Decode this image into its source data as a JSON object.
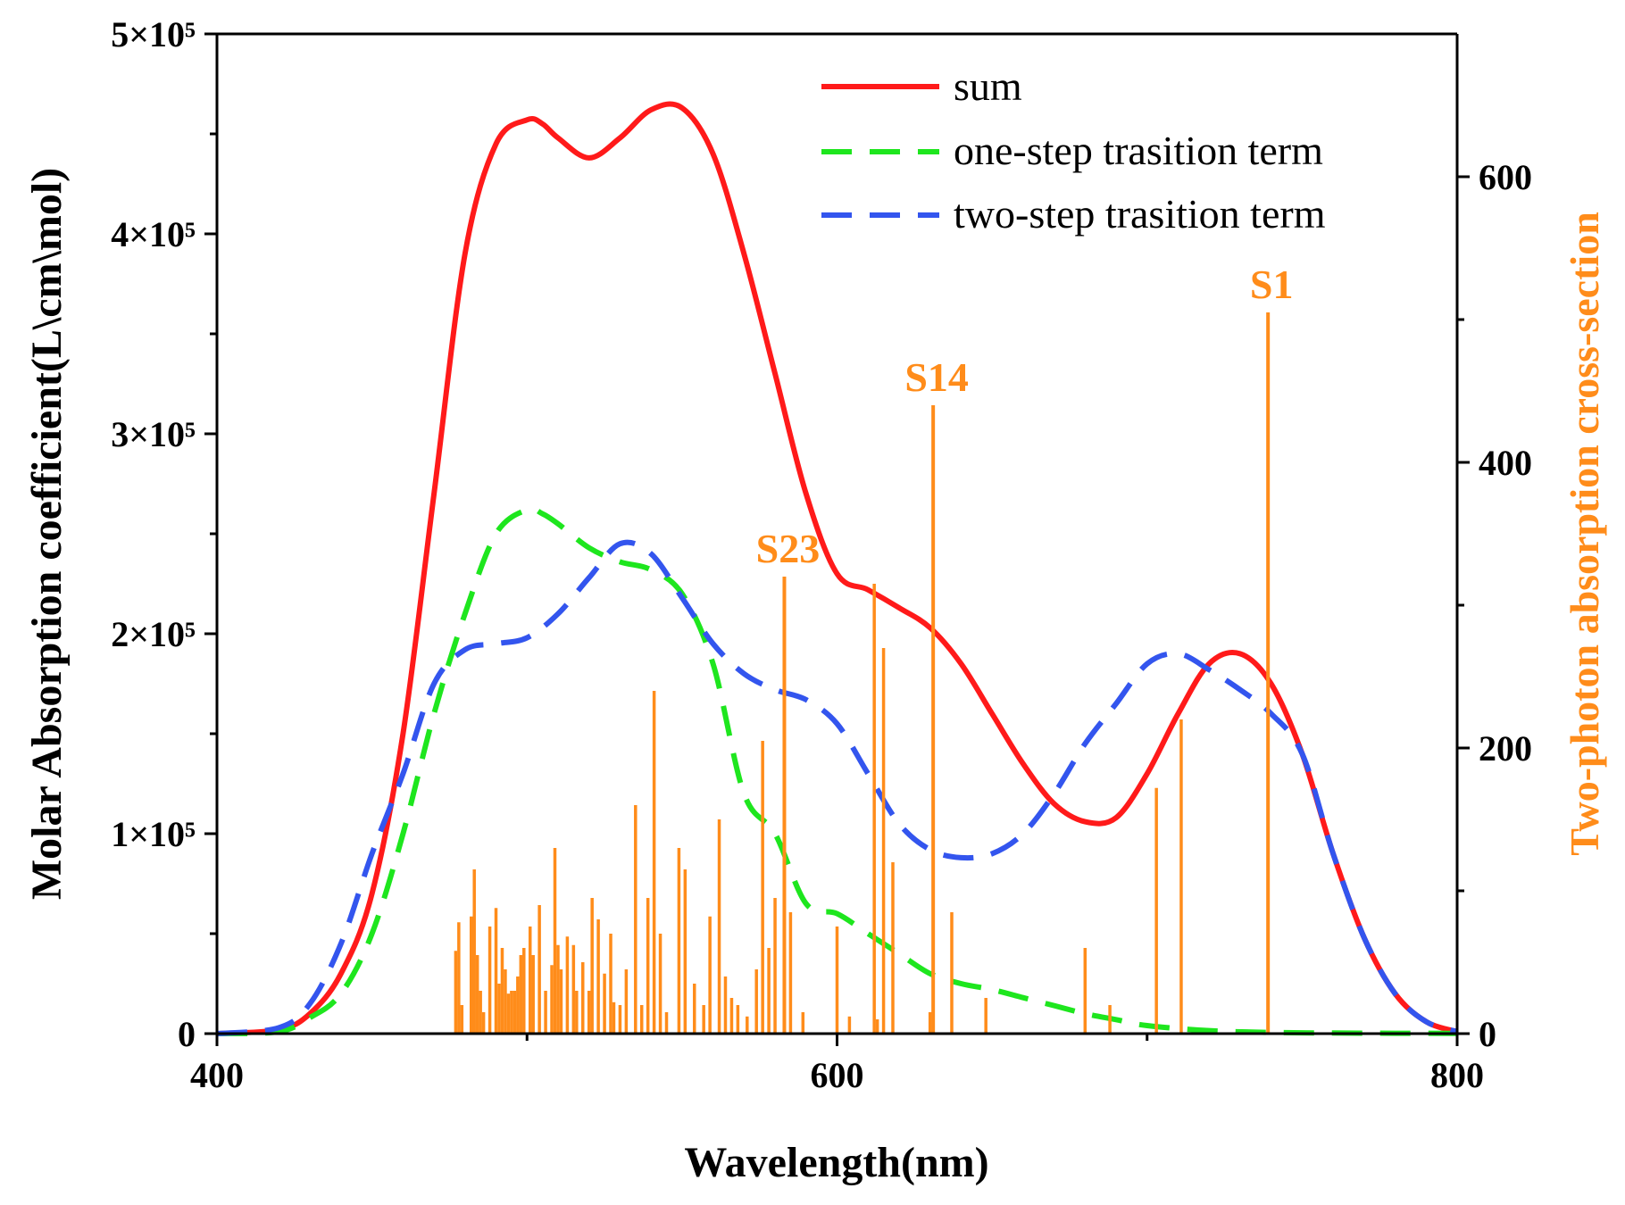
{
  "chart_data": {
    "type": "line",
    "xlabel": "Wavelength(nm)",
    "ylabel": "Molar Absorption coefficient(L\\cm\\mol)",
    "y2label": "Two-photon absorption cross-section",
    "xlim": [
      400,
      800
    ],
    "ylim": [
      0,
      500000
    ],
    "y2lim": [
      0,
      700
    ],
    "x_ticks": [
      "400",
      "600",
      "800"
    ],
    "y_ticks": [
      {
        "value": 0,
        "label": "0"
      },
      {
        "value": 100000,
        "label": "1×10⁵"
      },
      {
        "value": 200000,
        "label": "2×10⁵"
      },
      {
        "value": 300000,
        "label": "3×10⁵"
      },
      {
        "value": 400000,
        "label": "4×10⁵"
      },
      {
        "value": 500000,
        "label": "5×10⁵"
      }
    ],
    "y2_ticks": [
      "0",
      "200",
      "400",
      "600"
    ],
    "colors": {
      "sum": "#ff1a1a",
      "one_step": "#1ee61e",
      "two_step": "#3355ee",
      "sticks": "#ff8c1a"
    },
    "series": [
      {
        "name": "sum",
        "style": "solid",
        "x": [
          400,
          420,
          430,
          440,
          450,
          460,
          470,
          480,
          490,
          500,
          505,
          510,
          520,
          530,
          540,
          550,
          560,
          570,
          580,
          590,
          600,
          610,
          620,
          630,
          640,
          650,
          660,
          670,
          680,
          690,
          700,
          710,
          720,
          730,
          740,
          750,
          760,
          770,
          780,
          790,
          800
        ],
        "y": [
          0,
          2000,
          10000,
          30000,
          70000,
          150000,
          270000,
          390000,
          445000,
          457000,
          455000,
          448000,
          438000,
          448000,
          462000,
          463000,
          440000,
          390000,
          330000,
          270000,
          230000,
          222000,
          213000,
          203000,
          185000,
          160000,
          135000,
          115000,
          106000,
          108000,
          130000,
          160000,
          185000,
          190000,
          175000,
          140000,
          90000,
          48000,
          20000,
          6000,
          1000
        ]
      },
      {
        "name": "one-step trasition term",
        "style": "dashed",
        "x": [
          400,
          420,
          430,
          440,
          450,
          460,
          470,
          480,
          490,
          500,
          505,
          510,
          520,
          530,
          540,
          550,
          560,
          570,
          580,
          590,
          600,
          610,
          620,
          630,
          640,
          650,
          660,
          670,
          680,
          690,
          700,
          720,
          740,
          760,
          780,
          800
        ],
        "y": [
          0,
          1000,
          8000,
          20000,
          50000,
          100000,
          160000,
          210000,
          250000,
          262000,
          260000,
          255000,
          243000,
          236000,
          232000,
          220000,
          185000,
          120000,
          100000,
          65000,
          60000,
          50000,
          40000,
          30000,
          25000,
          22000,
          18000,
          14000,
          10000,
          7000,
          4000,
          1500,
          600,
          300,
          200,
          100
        ]
      },
      {
        "name": "two-step trasition term",
        "style": "dashed",
        "x": [
          400,
          420,
          430,
          440,
          450,
          460,
          470,
          480,
          490,
          500,
          510,
          520,
          530,
          540,
          550,
          560,
          570,
          580,
          590,
          600,
          610,
          620,
          630,
          640,
          650,
          660,
          670,
          680,
          690,
          700,
          710,
          720,
          730,
          740,
          750,
          760,
          770,
          780,
          790,
          800
        ],
        "y": [
          0,
          3000,
          15000,
          45000,
          90000,
          130000,
          175000,
          192000,
          195000,
          198000,
          210000,
          228000,
          245000,
          240000,
          218000,
          195000,
          180000,
          172000,
          167000,
          155000,
          130000,
          105000,
          92000,
          88000,
          90000,
          100000,
          120000,
          145000,
          165000,
          185000,
          190000,
          182000,
          172000,
          160000,
          140000,
          90000,
          48000,
          20000,
          6000,
          1000
        ]
      }
    ],
    "sticks": {
      "name": "Two-photon absorption cross-section",
      "axis": "right",
      "x": [
        477,
        478,
        479,
        482,
        483,
        484,
        485,
        486,
        488,
        490,
        491,
        492,
        493,
        494,
        495,
        496,
        497,
        498,
        499,
        501,
        502,
        504,
        506,
        508,
        509,
        510,
        511,
        513,
        515,
        516,
        518,
        520,
        521,
        523,
        525,
        527,
        528,
        530,
        532,
        535,
        537,
        539,
        541,
        543,
        545,
        549,
        551,
        554,
        557,
        559,
        562,
        564,
        566,
        568,
        571,
        574,
        576,
        578,
        580,
        583,
        585,
        589,
        600,
        604,
        612,
        613,
        615,
        618,
        630,
        637,
        648,
        680,
        688,
        703,
        711
      ],
      "y": [
        58,
        78,
        20,
        82,
        115,
        55,
        30,
        15,
        75,
        88,
        35,
        60,
        45,
        28,
        30,
        30,
        40,
        55,
        60,
        75,
        55,
        90,
        30,
        48,
        130,
        62,
        45,
        68,
        62,
        30,
        50,
        30,
        95,
        80,
        42,
        70,
        22,
        20,
        45,
        160,
        20,
        95,
        240,
        70,
        15,
        130,
        115,
        35,
        20,
        82,
        150,
        40,
        25,
        20,
        12,
        45,
        205,
        60,
        95,
        60,
        85,
        15,
        75,
        12,
        315,
        10,
        270,
        120,
        15,
        85,
        25,
        60,
        20,
        172,
        220
      ],
      "labeled": [
        {
          "label": "S23",
          "x": 583,
          "y": 320
        },
        {
          "label": "S14",
          "x": 631,
          "y": 440
        },
        {
          "label": "S1",
          "x": 739,
          "y": 505
        }
      ]
    }
  }
}
